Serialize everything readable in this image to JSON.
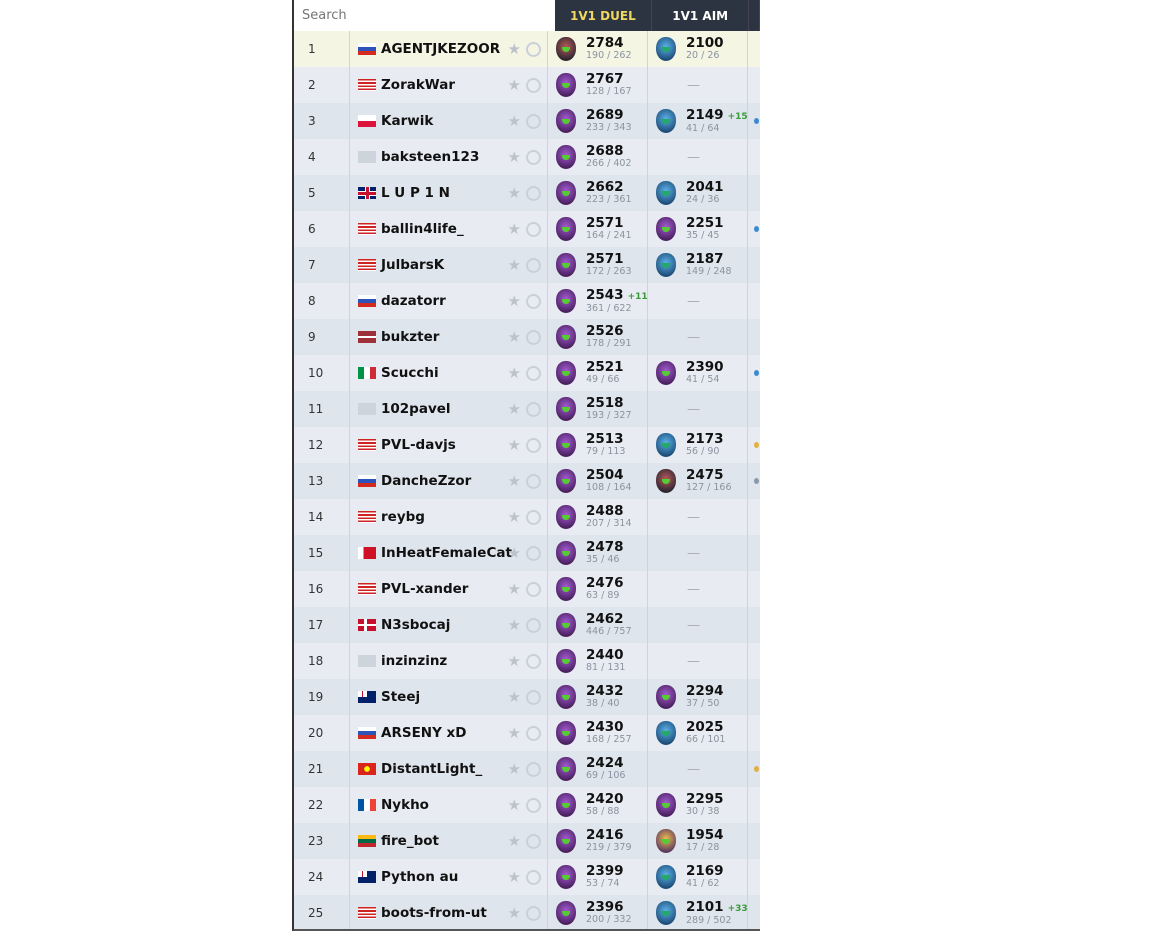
{
  "search": {
    "placeholder": "Search"
  },
  "columns": {
    "duel": "1V1 DUEL",
    "aim": "1V1 AIM"
  },
  "colors": {
    "header_bg": "#2b3440",
    "duel_header": "#f0d860",
    "delta": "#3a9a3a"
  },
  "rows": [
    {
      "rank": "1",
      "flag": "ru",
      "name": "AGENTJKEZOOR",
      "duel": {
        "badge": "red",
        "elo": "2784",
        "wl": "190 / 262"
      },
      "aim": {
        "badge": "blue",
        "elo": "2100",
        "wl": "20 / 26"
      },
      "highlight": true
    },
    {
      "rank": "2",
      "flag": "us",
      "name": "ZorakWar",
      "duel": {
        "badge": "purple",
        "elo": "2767",
        "wl": "128 / 167"
      },
      "aim": null
    },
    {
      "rank": "3",
      "flag": "pl",
      "name": "Karwik",
      "duel": {
        "badge": "purple",
        "elo": "2689",
        "wl": "233 / 343"
      },
      "aim": {
        "badge": "blue",
        "elo": "2149",
        "delta": "+15",
        "wl": "41 / 64"
      },
      "extra": "blue"
    },
    {
      "rank": "4",
      "flag": "none",
      "name": "baksteen123",
      "duel": {
        "badge": "purple",
        "elo": "2688",
        "wl": "266 / 402"
      },
      "aim": null
    },
    {
      "rank": "5",
      "flag": "gb",
      "name": "L U P 1 N",
      "duel": {
        "badge": "purple",
        "elo": "2662",
        "wl": "223 / 361"
      },
      "aim": {
        "badge": "blue",
        "elo": "2041",
        "wl": "24 / 36"
      }
    },
    {
      "rank": "6",
      "flag": "us",
      "name": "ballin4life_",
      "duel": {
        "badge": "purple",
        "elo": "2571",
        "wl": "164 / 241"
      },
      "aim": {
        "badge": "purple",
        "elo": "2251",
        "wl": "35 / 45"
      },
      "extra": "blue"
    },
    {
      "rank": "7",
      "flag": "us",
      "name": "JulbarsK",
      "duel": {
        "badge": "purple",
        "elo": "2571",
        "wl": "172 / 263"
      },
      "aim": {
        "badge": "blue",
        "elo": "2187",
        "wl": "149 / 248"
      }
    },
    {
      "rank": "8",
      "flag": "ru",
      "name": "dazatorr",
      "duel": {
        "badge": "purple",
        "elo": "2543",
        "delta": "+11",
        "wl": "361 / 622"
      },
      "aim": null
    },
    {
      "rank": "9",
      "flag": "lv",
      "name": "bukzter",
      "duel": {
        "badge": "purple",
        "elo": "2526",
        "wl": "178 / 291"
      },
      "aim": null
    },
    {
      "rank": "10",
      "flag": "it",
      "name": "Scucchi",
      "duel": {
        "badge": "purple",
        "elo": "2521",
        "wl": "49 / 66"
      },
      "aim": {
        "badge": "purple",
        "elo": "2390",
        "wl": "41 / 54"
      },
      "extra": "blue"
    },
    {
      "rank": "11",
      "flag": "none",
      "name": "102pavel",
      "duel": {
        "badge": "purple",
        "elo": "2518",
        "wl": "193 / 327"
      },
      "aim": null
    },
    {
      "rank": "12",
      "flag": "us",
      "name": "PVL-davjs",
      "duel": {
        "badge": "purple",
        "elo": "2513",
        "wl": "79 / 113"
      },
      "aim": {
        "badge": "blue",
        "elo": "2173",
        "wl": "56 / 90"
      },
      "extra": "gold"
    },
    {
      "rank": "13",
      "flag": "ru",
      "name": "DancheZzor",
      "duel": {
        "badge": "purple",
        "elo": "2504",
        "wl": "108 / 164"
      },
      "aim": {
        "badge": "red",
        "elo": "2475",
        "wl": "127 / 166"
      },
      "extra": "grey"
    },
    {
      "rank": "14",
      "flag": "us",
      "name": "reybg",
      "duel": {
        "badge": "purple",
        "elo": "2488",
        "wl": "207 / 314"
      },
      "aim": null
    },
    {
      "rank": "15",
      "flag": "bh",
      "name": "InHeatFemaleCat",
      "duel": {
        "badge": "purple",
        "elo": "2478",
        "wl": "35 / 46"
      },
      "aim": null
    },
    {
      "rank": "16",
      "flag": "us",
      "name": "PVL-xander",
      "duel": {
        "badge": "purple",
        "elo": "2476",
        "wl": "63 / 89"
      },
      "aim": null
    },
    {
      "rank": "17",
      "flag": "dk",
      "name": "N3sbocaj",
      "duel": {
        "badge": "purple",
        "elo": "2462",
        "wl": "446 / 757"
      },
      "aim": null
    },
    {
      "rank": "18",
      "flag": "none",
      "name": "inzinzinz",
      "duel": {
        "badge": "purple",
        "elo": "2440",
        "wl": "81 / 131"
      },
      "aim": null
    },
    {
      "rank": "19",
      "flag": "au",
      "name": "Steej",
      "duel": {
        "badge": "purple",
        "elo": "2432",
        "wl": "38 / 40"
      },
      "aim": {
        "badge": "purple",
        "elo": "2294",
        "wl": "37 / 50"
      }
    },
    {
      "rank": "20",
      "flag": "ru",
      "name": "ARSENY xD",
      "duel": {
        "badge": "purple",
        "elo": "2430",
        "wl": "168 / 257"
      },
      "aim": {
        "badge": "blue",
        "elo": "2025",
        "wl": "66 / 101"
      }
    },
    {
      "rank": "21",
      "flag": "vn",
      "name": "DistantLight_",
      "duel": {
        "badge": "purple",
        "elo": "2424",
        "wl": "69 / 106"
      },
      "aim": null,
      "extra": "gold"
    },
    {
      "rank": "22",
      "flag": "fr",
      "name": "Nykho",
      "duel": {
        "badge": "purple",
        "elo": "2420",
        "wl": "58 / 88"
      },
      "aim": {
        "badge": "purple",
        "elo": "2295",
        "wl": "30 / 38"
      }
    },
    {
      "rank": "23",
      "flag": "lt",
      "name": "fire_bot",
      "duel": {
        "badge": "purple",
        "elo": "2416",
        "wl": "219 / 379"
      },
      "aim": {
        "badge": "gold",
        "elo": "1954",
        "wl": "17 / 28"
      }
    },
    {
      "rank": "24",
      "flag": "au",
      "name": "Python au",
      "duel": {
        "badge": "purple",
        "elo": "2399",
        "wl": "53 / 74"
      },
      "aim": {
        "badge": "blue",
        "elo": "2169",
        "wl": "41 / 62"
      }
    },
    {
      "rank": "25",
      "flag": "us",
      "name": "boots-from-ut",
      "duel": {
        "badge": "purple",
        "elo": "2396",
        "wl": "200 / 332"
      },
      "aim": {
        "badge": "blue",
        "elo": "2101",
        "delta": "+33",
        "wl": "289 / 502"
      }
    }
  ],
  "empty_mark": "—"
}
